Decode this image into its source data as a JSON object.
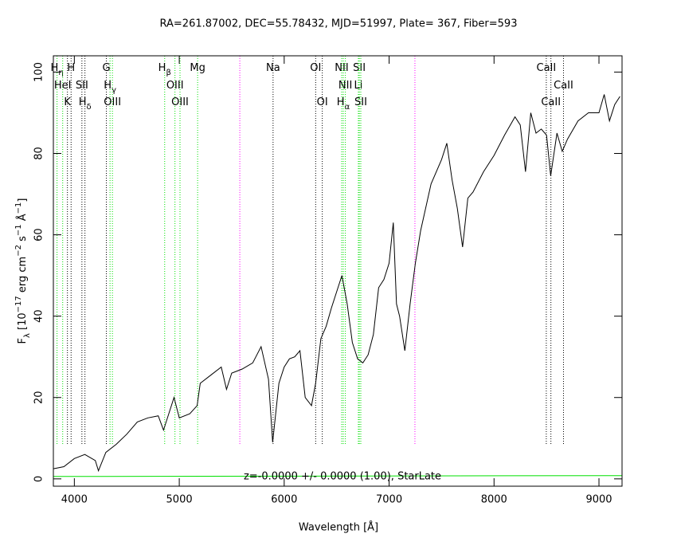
{
  "chart_data": {
    "type": "line",
    "title": "RA=261.87002, DEC=55.78432, MJD=51997, Plate=  367, Fiber=593",
    "xlabel": "Wavelength [Å]",
    "ylabel": [
      {
        "text": "F"
      },
      {
        "text": "λ",
        "script": "sub"
      },
      {
        "text": " [10"
      },
      {
        "text": "−17",
        "script": "super"
      },
      {
        "text": " erg cm"
      },
      {
        "text": "−2",
        "script": "super"
      },
      {
        "text": " s"
      },
      {
        "text": "−1",
        "script": "super"
      },
      {
        "text": " Å"
      },
      {
        "text": "−1",
        "script": "super"
      },
      {
        "text": "]"
      }
    ],
    "annotation": "z=-0.0000 +/- 0.0000 (1.00), StarLate",
    "xlim": [
      3800,
      9220
    ],
    "ylim": [
      -1.8,
      104
    ],
    "xticks": [
      4000,
      5000,
      6000,
      7000,
      8000,
      9000
    ],
    "yticks": [
      0,
      20,
      40,
      60,
      80,
      100
    ],
    "series": [
      {
        "color": "#000000",
        "x": [
          3800,
          3900,
          4000,
          4100,
          4200,
          4230,
          4300,
          4400,
          4500,
          4600,
          4700,
          4800,
          4850,
          4900,
          4950,
          5000,
          5100,
          5170,
          5200,
          5300,
          5400,
          5450,
          5500,
          5600,
          5700,
          5780,
          5850,
          5890,
          5950,
          6000,
          6050,
          6100,
          6150,
          6200,
          6260,
          6300,
          6350,
          6400,
          6450,
          6500,
          6550,
          6600,
          6650,
          6700,
          6750,
          6800,
          6850,
          6900,
          6950,
          7000,
          7040,
          7070,
          7100,
          7150,
          7200,
          7250,
          7300,
          7400,
          7500,
          7550,
          7600,
          7650,
          7700,
          7750,
          7800,
          7900,
          8000,
          8100,
          8200,
          8250,
          8300,
          8350,
          8400,
          8450,
          8500,
          8540,
          8600,
          8650,
          8700,
          8800,
          8900,
          9000,
          9050,
          9100,
          9150,
          9200
        ],
        "values": [
          2.5,
          3,
          5,
          6,
          4.5,
          2,
          6.5,
          8.5,
          11,
          14,
          15,
          15.5,
          12,
          16,
          20,
          15,
          16,
          18,
          23.5,
          25.5,
          27.5,
          22,
          26,
          27,
          28.5,
          32.5,
          24.5,
          9,
          23.5,
          27.5,
          29.5,
          30,
          31.5,
          20,
          18,
          23.5,
          34.5,
          37.5,
          42,
          46,
          50,
          43,
          33.5,
          29.5,
          28.5,
          30.5,
          35.5,
          47,
          49,
          53,
          63,
          43,
          40,
          31.5,
          43,
          53,
          61,
          72.5,
          78.5,
          82.5,
          73.5,
          66.5,
          57,
          69,
          70.5,
          75.5,
          79.5,
          84.5,
          89,
          87,
          75.5,
          90,
          85,
          86,
          84.5,
          74.5,
          85,
          80.5,
          83.5,
          88,
          90,
          90,
          94.5,
          88,
          92,
          94
        ]
      },
      {
        "color": "#00e000",
        "x": [
          3800,
          9220
        ],
        "values": [
          0.6,
          0.8
        ]
      }
    ],
    "line_rows": [
      [
        {
          "x": 3835,
          "label": "H",
          "sub": "η",
          "color": "#00e000"
        },
        {
          "x": 3969,
          "label": "H",
          "color": "#000000"
        },
        {
          "x": 4305,
          "label": "G",
          "color": "#000000"
        },
        {
          "x": 4861,
          "label": "H",
          "sub": "β",
          "color": "#00e000"
        },
        {
          "x": 5175,
          "label": "Mg",
          "color": "#00e000"
        },
        {
          "x": 5894,
          "label": "Na",
          "color": "#000000"
        },
        {
          "x": 6300,
          "label": "OI",
          "color": "#000000"
        },
        {
          "x": 6548,
          "label": "NII",
          "color": "#00e000"
        },
        {
          "x": 6716,
          "label": "SII",
          "color": "#00e000"
        },
        {
          "x": 8498,
          "label": "CaII",
          "color": "#000000"
        }
      ],
      [
        {
          "x": 3889,
          "label": "HeI",
          "color": "#00e000"
        },
        {
          "x": 4072,
          "label": "SII",
          "color": "#000000"
        },
        {
          "x": 4340,
          "label": "H",
          "sub": "γ",
          "color": "#00e000"
        },
        {
          "x": 4959,
          "label": "OIII",
          "color": "#00e000"
        },
        {
          "x": 6583,
          "label": "NII",
          "color": "#00e000"
        },
        {
          "x": 6707,
          "label": "Li",
          "color": "#00e000"
        },
        {
          "x": 8662,
          "label": "CaII",
          "color": "#000000"
        }
      ],
      [
        {
          "x": 3934,
          "label": "K",
          "color": "#000000"
        },
        {
          "x": 4101,
          "label": "H",
          "sub": "δ",
          "color": "#000000"
        },
        {
          "x": 4363,
          "label": "OIII",
          "color": "#00e000"
        },
        {
          "x": 5007,
          "label": "OIII",
          "color": "#00e000"
        },
        {
          "x": 6363,
          "label": "OI",
          "color": "#000000"
        },
        {
          "x": 6563,
          "label": "H",
          "sub": "α",
          "color": "#00e000"
        },
        {
          "x": 6730,
          "label": "SII",
          "color": "#00e000"
        },
        {
          "x": 8542,
          "label": "CaII",
          "color": "#000000"
        }
      ]
    ],
    "sky_lines": [
      {
        "x": 5577,
        "color": "#ff00ff"
      },
      {
        "x": 7246,
        "color": "#ff00ff"
      }
    ]
  }
}
